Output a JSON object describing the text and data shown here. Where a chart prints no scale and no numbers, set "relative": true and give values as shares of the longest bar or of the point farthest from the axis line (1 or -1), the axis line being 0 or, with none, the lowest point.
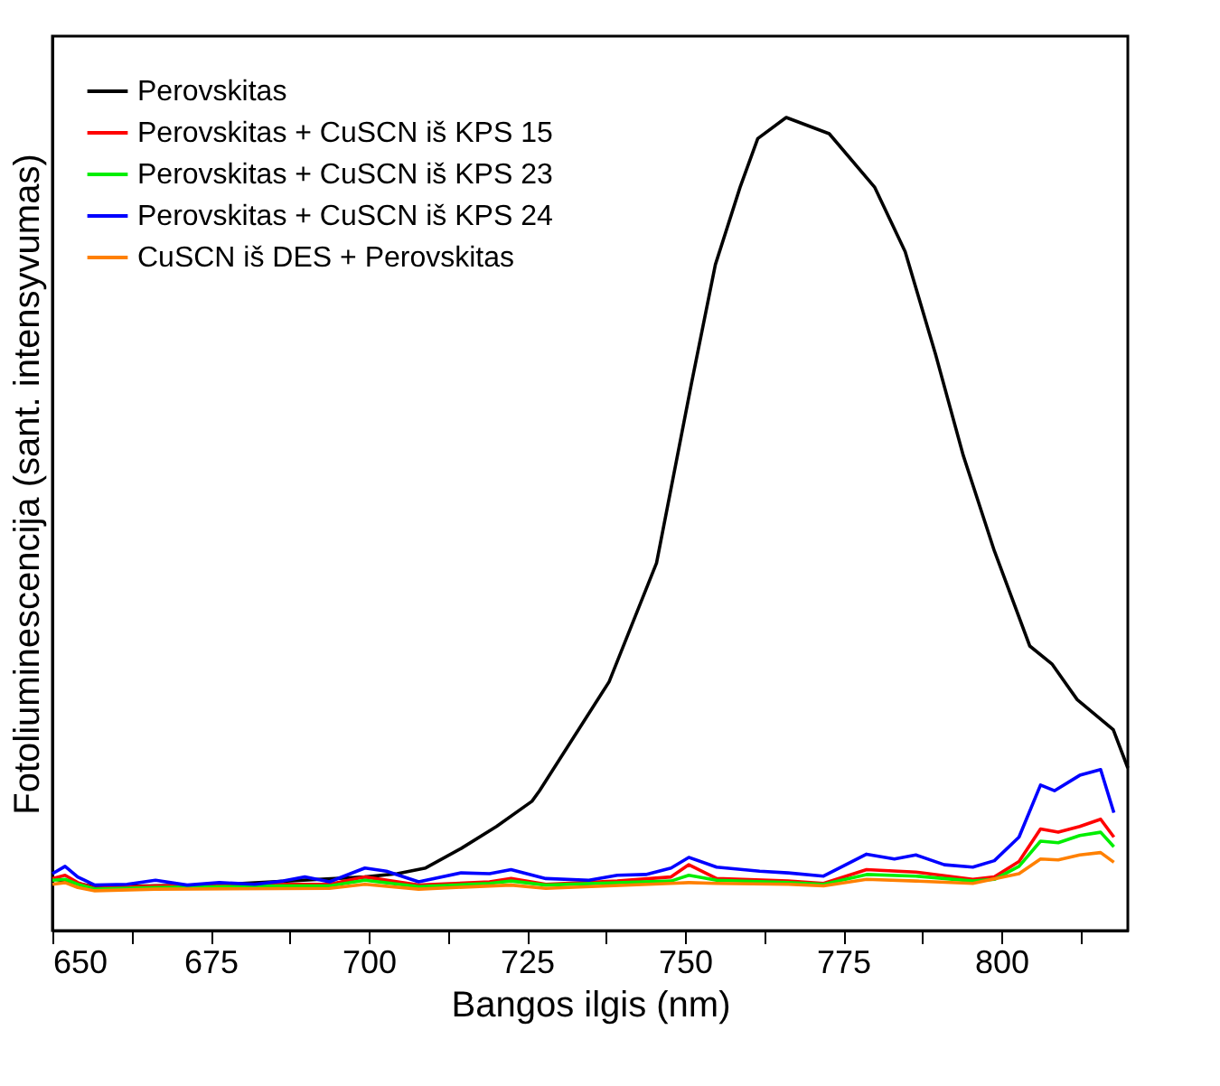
{
  "chart_data": {
    "type": "line",
    "relative": true,
    "xlabel": "Bangos ilgis (nm)",
    "ylabel": "Fotoliuminescencija (sant. intensyvumas)",
    "xlim": [
      650,
      820
    ],
    "xticks": [
      650,
      {
        "value": 662.5,
        "label": null
      },
      675,
      {
        "value": 687.5,
        "label": null
      },
      700,
      {
        "value": 712.5,
        "label": null
      },
      725,
      {
        "value": 737.5,
        "label": null
      },
      750,
      {
        "value": 762.5,
        "label": null
      },
      775,
      {
        "value": 787.5,
        "label": null
      },
      800,
      {
        "value": 812.5,
        "label": null
      }
    ],
    "grid": false,
    "legend": "top left",
    "marker": "none",
    "line_style": "solid",
    "series": [
      {
        "name": "Perovskitas",
        "color": "#000000",
        "x": [
          650,
          656.7,
          675,
          699.4,
          704.5,
          709,
          714.6,
          720.2,
          725.8,
          727,
          738,
          745.5,
          751,
          754.8,
          758.7,
          761.5,
          766,
          772.8,
          780,
          784.8,
          789.6,
          794,
          798.9,
          804.5,
          808,
          812,
          817.7,
          820
        ],
        "values": [
          0.064,
          0.054,
          0.056,
          0.066,
          0.07,
          0.077,
          0.101,
          0.128,
          0.159,
          0.172,
          0.306,
          0.452,
          0.672,
          0.819,
          0.914,
          0.974,
          1.0,
          0.98,
          0.914,
          0.835,
          0.709,
          0.584,
          0.467,
          0.35,
          0.328,
          0.284,
          0.247,
          0.2
        ]
      },
      {
        "name": "Perovskitas + CuSCN iš KPS 15",
        "color": "#ff0000",
        "x": [
          650,
          652,
          654,
          656.7,
          666.3,
          676.4,
          686.5,
          693.8,
          699.4,
          707.9,
          719.1,
          722.5,
          728,
          739.3,
          747.8,
          750.6,
          755,
          766.3,
          771.9,
          778.7,
          786.5,
          795.5,
          798.9,
          802.8,
          806.2,
          809,
          812.4,
          815.7,
          817.8
        ],
        "values": [
          0.064,
          0.068,
          0.059,
          0.052,
          0.055,
          0.055,
          0.057,
          0.057,
          0.066,
          0.056,
          0.06,
          0.064,
          0.057,
          0.061,
          0.066,
          0.081,
          0.064,
          0.061,
          0.058,
          0.075,
          0.072,
          0.063,
          0.066,
          0.085,
          0.125,
          0.121,
          0.128,
          0.137,
          0.115
        ]
      },
      {
        "name": "Perovskitas + CuSCN iš KPS 23",
        "color": "#00ee00",
        "x": [
          650,
          652,
          654,
          656.7,
          666.3,
          686.5,
          693.8,
          699.4,
          707.9,
          719.1,
          722.5,
          728,
          747.8,
          750.6,
          755,
          766.3,
          771.9,
          778.7,
          786.5,
          795.5,
          798.9,
          802.8,
          806.2,
          809,
          812.4,
          815.7,
          817.8
        ],
        "values": [
          0.062,
          0.063,
          0.057,
          0.051,
          0.053,
          0.055,
          0.055,
          0.062,
          0.054,
          0.058,
          0.061,
          0.056,
          0.061,
          0.068,
          0.062,
          0.059,
          0.057,
          0.069,
          0.067,
          0.061,
          0.063,
          0.079,
          0.11,
          0.108,
          0.117,
          0.121,
          0.103
        ]
      },
      {
        "name": "Perovskitas + CuSCN iš KPS 24",
        "color": "#0000ff",
        "x": [
          650,
          652,
          654,
          656.7,
          661.8,
          666.3,
          671.3,
          676.4,
          682,
          686.5,
          689.9,
          693.8,
          699.4,
          702.8,
          707.9,
          714.6,
          719.1,
          722.5,
          728,
          734.8,
          739.3,
          743.8,
          747.8,
          750.6,
          755,
          761.8,
          766.3,
          771.9,
          778.7,
          783.1,
          786.5,
          791,
          795.5,
          798.9,
          802.8,
          806.2,
          808.4,
          812.4,
          815.7,
          817.8
        ],
        "values": [
          0.07,
          0.079,
          0.066,
          0.056,
          0.057,
          0.062,
          0.056,
          0.059,
          0.057,
          0.061,
          0.066,
          0.06,
          0.077,
          0.073,
          0.06,
          0.071,
          0.07,
          0.075,
          0.064,
          0.062,
          0.068,
          0.069,
          0.077,
          0.09,
          0.078,
          0.073,
          0.071,
          0.067,
          0.094,
          0.088,
          0.093,
          0.081,
          0.078,
          0.086,
          0.115,
          0.179,
          0.172,
          0.191,
          0.198,
          0.145
        ]
      },
      {
        "name": "CuSCN iš DES + Perovskitas",
        "color": "#ff8000",
        "x": [
          650,
          652,
          654,
          656.7,
          666.3,
          693.8,
          699.4,
          707.9,
          722.5,
          728,
          747.8,
          750.6,
          755,
          766.3,
          771.9,
          778.7,
          786.5,
          795.5,
          802.8,
          806.2,
          809,
          812.4,
          815.7,
          817.8
        ],
        "values": [
          0.057,
          0.059,
          0.053,
          0.049,
          0.051,
          0.052,
          0.057,
          0.051,
          0.056,
          0.052,
          0.058,
          0.059,
          0.058,
          0.057,
          0.055,
          0.063,
          0.061,
          0.058,
          0.07,
          0.088,
          0.087,
          0.093,
          0.096,
          0.084
        ]
      }
    ]
  }
}
